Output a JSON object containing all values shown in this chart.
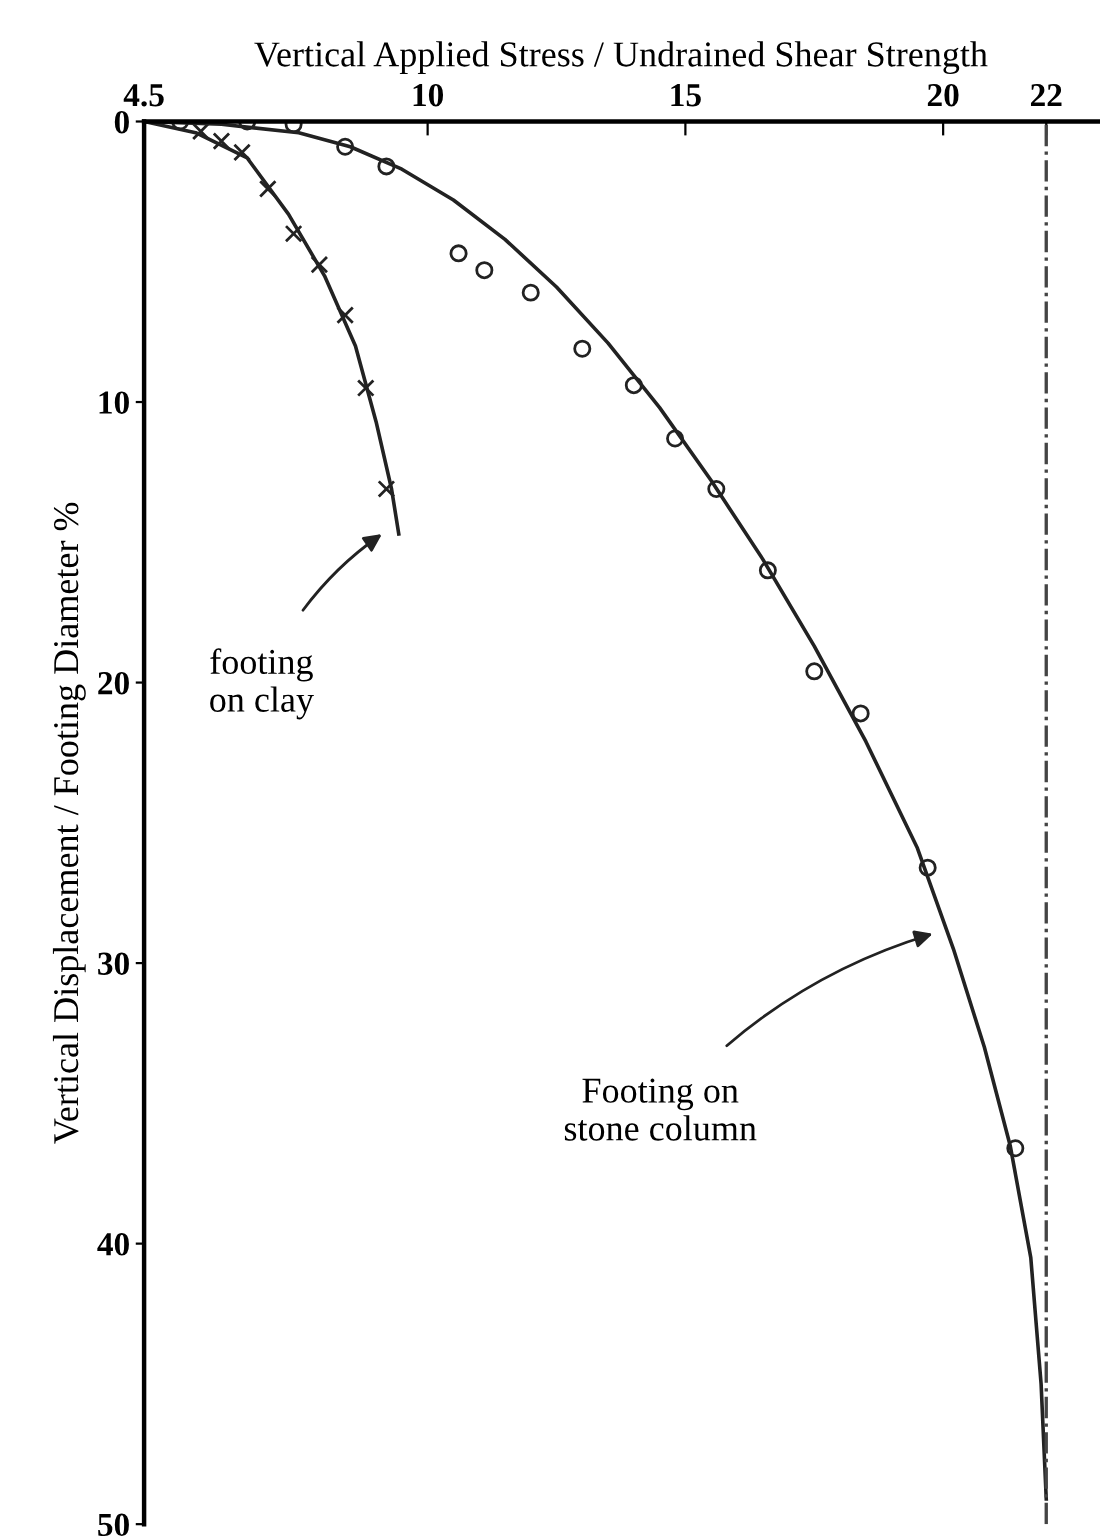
{
  "chart_data": {
    "type": "line",
    "xlabel": "Vertical Applied Stress / Undrained Shear Strength",
    "ylabel": "Vertical Displacement / Footing Diameter %",
    "xlim": [
      4.5,
      23
    ],
    "xticks": [
      4.5,
      10,
      15,
      20,
      22
    ],
    "ylim": [
      50,
      0
    ],
    "yticks": [
      0,
      10,
      20,
      30,
      40,
      50
    ],
    "grid": false,
    "legend": false,
    "series": [
      {
        "color": "#222222",
        "line_style": "solid",
        "marker": "none",
        "x": [
          4.5,
          6,
          7.5,
          8.5,
          9.5,
          10.5,
          11.5,
          12.5,
          13.5,
          14.5,
          15.5,
          16.5,
          17.5,
          18.5,
          19.5,
          20.2,
          20.8,
          21.3,
          21.7,
          21.9,
          22.0
        ],
        "values": [
          0,
          0.1,
          0.4,
          0.9,
          1.7,
          2.8,
          4.2,
          5.9,
          7.9,
          10.2,
          12.8,
          15.6,
          18.7,
          22.1,
          25.9,
          29.5,
          33,
          36.5,
          40.5,
          45,
          49.1
        ]
      },
      {
        "type": "scatter",
        "color": "#222222",
        "marker": "circle",
        "x": [
          5.2,
          6.5,
          7.4,
          8.4,
          9.2,
          10.6,
          11.1,
          12.0,
          13.0,
          14.0,
          14.8,
          15.6,
          16.6,
          17.5,
          18.4,
          19.7,
          21.4
        ],
        "values": [
          0,
          0,
          0.1,
          0.9,
          1.6,
          4.7,
          5.3,
          6.1,
          8.1,
          9.4,
          11.3,
          13.1,
          16.0,
          19.6,
          21.1,
          26.6,
          36.6
        ]
      },
      {
        "color": "#222222",
        "line_style": "solid",
        "marker": "none",
        "x": [
          4.5,
          5.5,
          6.5,
          7.3,
          8.0,
          8.6,
          9.0,
          9.3,
          9.44
        ],
        "values": [
          0,
          0.4,
          1.3,
          3.3,
          5.5,
          8.0,
          10.7,
          13.1,
          14.7
        ]
      },
      {
        "type": "scatter",
        "color": "#222222",
        "marker": "cross",
        "x": [
          5.6,
          6.0,
          6.4,
          6.9,
          7.4,
          7.9,
          8.4,
          8.8,
          9.2
        ],
        "values": [
          0.35,
          0.7,
          1.1,
          2.4,
          4.0,
          5.1,
          6.9,
          9.5,
          13.1
        ]
      }
    ],
    "ref_lines": [
      {
        "axis": "x",
        "value": 22,
        "color": "#444444",
        "line_style": "dashdot"
      }
    ],
    "annotations": [
      {
        "text": "footing\non clay",
        "x": 9.2,
        "y": 14.6
      },
      {
        "text": "Footing on\nstone column",
        "x": 19.9,
        "y": 28.9
      }
    ]
  }
}
